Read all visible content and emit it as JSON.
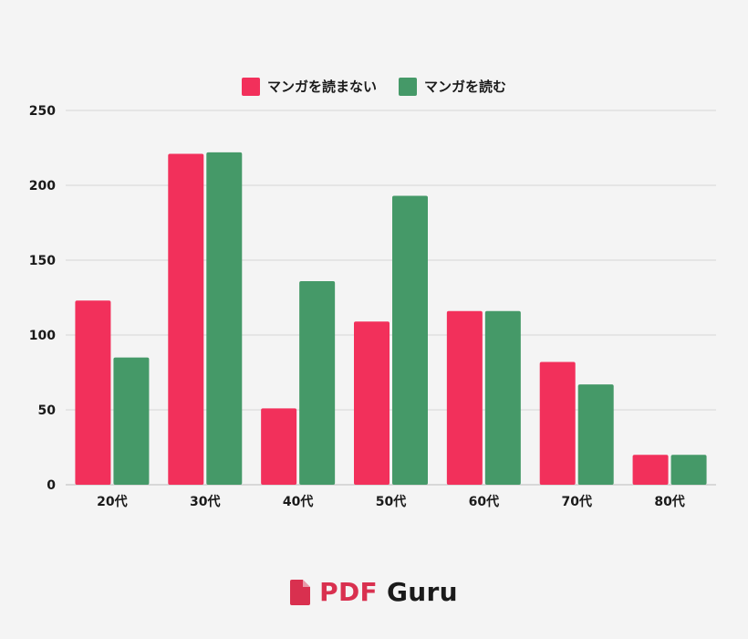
{
  "chart_data": {
    "type": "bar",
    "categories": [
      "20代",
      "30代",
      "40代",
      "50代",
      "60代",
      "70代",
      "80代"
    ],
    "series": [
      {
        "name": "マンガを読まない",
        "values": [
          123,
          221,
          51,
          109,
          116,
          82,
          20
        ]
      },
      {
        "name": "マンガを読む",
        "values": [
          85,
          222,
          136,
          193,
          116,
          67,
          20
        ]
      }
    ],
    "ylim": [
      0,
      250
    ],
    "yticks": [
      0,
      50,
      100,
      150,
      200,
      250
    ],
    "grid": true,
    "legend_position": "top-center",
    "title": "",
    "xlabel": "",
    "ylabel": ""
  },
  "colors": {
    "series": [
      "#f2305b",
      "#459968"
    ],
    "grid": "#d6d6d6",
    "background": "#f4f4f4"
  },
  "brand": {
    "pdf_text": "PDF",
    "guru_text": "Guru",
    "icon": "document-icon",
    "color": "#d9304f"
  }
}
